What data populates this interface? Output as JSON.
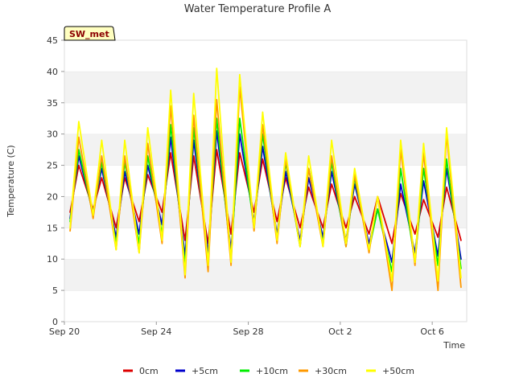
{
  "chart_data": {
    "type": "line",
    "title": "Water Temperature Profile A",
    "xlabel": "Time",
    "ylabel": "Temperature (C)",
    "ylim": [
      0,
      45
    ],
    "yticks": [
      0,
      5,
      10,
      15,
      20,
      25,
      30,
      35,
      40,
      45
    ],
    "xlim": [
      "2023-09-20",
      "2023-10-07T12:00"
    ],
    "xticks": [
      {
        "date": "2023-09-20",
        "label": "Sep 20"
      },
      {
        "date": "2023-09-24",
        "label": "Sep 24"
      },
      {
        "date": "2023-09-28",
        "label": "Sep 28"
      },
      {
        "date": "2023-10-02",
        "label": "Oct 2"
      },
      {
        "date": "2023-10-06",
        "label": "Oct 6"
      }
    ],
    "grid": "horizontal bands",
    "legend_position": "bottom",
    "badge": "SW_met",
    "series": [
      {
        "name": "0cm",
        "color": "#dd0000",
        "points": [
          [
            "2023-09-20T06:00",
            17.5
          ],
          [
            "2023-09-20T15:00",
            25.0
          ],
          [
            "2023-09-21T06:00",
            18.0
          ],
          [
            "2023-09-21T15:00",
            23.0
          ],
          [
            "2023-09-22T06:00",
            15.0
          ],
          [
            "2023-09-22T15:00",
            23.0
          ],
          [
            "2023-09-23T06:00",
            16.0
          ],
          [
            "2023-09-23T15:00",
            23.5
          ],
          [
            "2023-09-24T06:00",
            17.5
          ],
          [
            "2023-09-24T15:00",
            27.0
          ],
          [
            "2023-09-25T06:00",
            13.0
          ],
          [
            "2023-09-25T15:00",
            26.5
          ],
          [
            "2023-09-26T06:00",
            12.5
          ],
          [
            "2023-09-26T15:00",
            27.5
          ],
          [
            "2023-09-27T06:00",
            14.0
          ],
          [
            "2023-09-27T15:00",
            27.0
          ],
          [
            "2023-09-28T06:00",
            17.5
          ],
          [
            "2023-09-28T15:00",
            26.0
          ],
          [
            "2023-09-29T06:00",
            16.0
          ],
          [
            "2023-09-29T15:00",
            23.0
          ],
          [
            "2023-09-30T06:00",
            15.0
          ],
          [
            "2023-09-30T15:00",
            21.5
          ],
          [
            "2023-10-01T06:00",
            15.0
          ],
          [
            "2023-10-01T15:00",
            22.0
          ],
          [
            "2023-10-02T06:00",
            15.0
          ],
          [
            "2023-10-02T15:00",
            20.0
          ],
          [
            "2023-10-03T06:00",
            14.0
          ],
          [
            "2023-10-03T15:00",
            20.0
          ],
          [
            "2023-10-04T06:00",
            12.5
          ],
          [
            "2023-10-04T15:00",
            20.5
          ],
          [
            "2023-10-05T06:00",
            14.0
          ],
          [
            "2023-10-05T15:00",
            19.5
          ],
          [
            "2023-10-06T06:00",
            13.5
          ],
          [
            "2023-10-06T15:00",
            21.5
          ],
          [
            "2023-10-07T06:00",
            13.0
          ]
        ]
      },
      {
        "name": "+5cm",
        "color": "#0000cc",
        "points": [
          [
            "2023-09-20T06:00",
            16.5
          ],
          [
            "2023-09-20T15:00",
            26.5
          ],
          [
            "2023-09-21T06:00",
            17.5
          ],
          [
            "2023-09-21T15:00",
            24.5
          ],
          [
            "2023-09-22T06:00",
            13.5
          ],
          [
            "2023-09-22T15:00",
            24.0
          ],
          [
            "2023-09-23T06:00",
            14.0
          ],
          [
            "2023-09-23T15:00",
            25.0
          ],
          [
            "2023-09-24T06:00",
            15.5
          ],
          [
            "2023-09-24T15:00",
            29.5
          ],
          [
            "2023-09-25T06:00",
            10.5
          ],
          [
            "2023-09-25T15:00",
            29.0
          ],
          [
            "2023-09-26T06:00",
            11.0
          ],
          [
            "2023-09-26T15:00",
            30.5
          ],
          [
            "2023-09-27T06:00",
            11.5
          ],
          [
            "2023-09-27T15:00",
            30.0
          ],
          [
            "2023-09-28T06:00",
            16.0
          ],
          [
            "2023-09-28T15:00",
            28.0
          ],
          [
            "2023-09-29T06:00",
            14.0
          ],
          [
            "2023-09-29T15:00",
            24.0
          ],
          [
            "2023-09-30T06:00",
            13.0
          ],
          [
            "2023-09-30T15:00",
            23.0
          ],
          [
            "2023-10-01T06:00",
            13.5
          ],
          [
            "2023-10-01T15:00",
            24.0
          ],
          [
            "2023-10-02T06:00",
            13.0
          ],
          [
            "2023-10-02T15:00",
            22.0
          ],
          [
            "2023-10-03T06:00",
            12.5
          ],
          [
            "2023-10-03T15:00",
            18.0
          ],
          [
            "2023-10-04T06:00",
            9.5
          ],
          [
            "2023-10-04T15:00",
            22.0
          ],
          [
            "2023-10-05T06:00",
            11.0
          ],
          [
            "2023-10-05T15:00",
            22.5
          ],
          [
            "2023-10-06T06:00",
            10.5
          ],
          [
            "2023-10-06T15:00",
            24.5
          ],
          [
            "2023-10-07T06:00",
            10.0
          ]
        ]
      },
      {
        "name": "+10cm",
        "color": "#00ee00",
        "points": [
          [
            "2023-09-20T06:00",
            16.0
          ],
          [
            "2023-09-20T15:00",
            27.5
          ],
          [
            "2023-09-21T06:00",
            17.0
          ],
          [
            "2023-09-21T15:00",
            25.5
          ],
          [
            "2023-09-22T06:00",
            12.5
          ],
          [
            "2023-09-22T15:00",
            25.5
          ],
          [
            "2023-09-23T06:00",
            12.5
          ],
          [
            "2023-09-23T15:00",
            26.5
          ],
          [
            "2023-09-24T06:00",
            14.0
          ],
          [
            "2023-09-24T15:00",
            31.5
          ],
          [
            "2023-09-25T06:00",
            9.0
          ],
          [
            "2023-09-25T15:00",
            31.0
          ],
          [
            "2023-09-26T06:00",
            9.5
          ],
          [
            "2023-09-26T15:00",
            32.5
          ],
          [
            "2023-09-27T06:00",
            10.0
          ],
          [
            "2023-09-27T15:00",
            32.5
          ],
          [
            "2023-09-28T06:00",
            15.0
          ],
          [
            "2023-09-28T15:00",
            30.0
          ],
          [
            "2023-09-29T06:00",
            13.0
          ],
          [
            "2023-09-29T15:00",
            25.5
          ],
          [
            "2023-09-30T06:00",
            12.0
          ],
          [
            "2023-09-30T15:00",
            24.5
          ],
          [
            "2023-10-01T06:00",
            12.5
          ],
          [
            "2023-10-01T15:00",
            25.5
          ],
          [
            "2023-10-02T06:00",
            12.0
          ],
          [
            "2023-10-02T15:00",
            23.0
          ],
          [
            "2023-10-03T06:00",
            11.5
          ],
          [
            "2023-10-03T15:00",
            18.0
          ],
          [
            "2023-10-04T06:00",
            8.0
          ],
          [
            "2023-10-04T15:00",
            24.5
          ],
          [
            "2023-10-05T06:00",
            9.5
          ],
          [
            "2023-10-05T15:00",
            24.5
          ],
          [
            "2023-10-06T06:00",
            9.0
          ],
          [
            "2023-10-06T15:00",
            26.0
          ],
          [
            "2023-10-07T06:00",
            8.5
          ]
        ]
      },
      {
        "name": "+30cm",
        "color": "#ff9900",
        "points": [
          [
            "2023-09-20T06:00",
            14.5
          ],
          [
            "2023-09-20T15:00",
            29.5
          ],
          [
            "2023-09-21T06:00",
            16.5
          ],
          [
            "2023-09-21T15:00",
            26.5
          ],
          [
            "2023-09-22T06:00",
            11.5
          ],
          [
            "2023-09-22T15:00",
            26.5
          ],
          [
            "2023-09-23T06:00",
            11.0
          ],
          [
            "2023-09-23T15:00",
            28.5
          ],
          [
            "2023-09-24T06:00",
            12.5
          ],
          [
            "2023-09-24T15:00",
            34.5
          ],
          [
            "2023-09-25T06:00",
            7.0
          ],
          [
            "2023-09-25T15:00",
            33.0
          ],
          [
            "2023-09-26T06:00",
            8.0
          ],
          [
            "2023-09-26T15:00",
            35.5
          ],
          [
            "2023-09-27T06:00",
            9.0
          ],
          [
            "2023-09-27T15:00",
            37.5
          ],
          [
            "2023-09-28T06:00",
            14.5
          ],
          [
            "2023-09-28T15:00",
            31.5
          ],
          [
            "2023-09-29T06:00",
            12.5
          ],
          [
            "2023-09-29T15:00",
            26.0
          ],
          [
            "2023-09-30T06:00",
            12.0
          ],
          [
            "2023-09-30T15:00",
            24.5
          ],
          [
            "2023-10-01T06:00",
            12.0
          ],
          [
            "2023-10-01T15:00",
            26.5
          ],
          [
            "2023-10-02T06:00",
            12.0
          ],
          [
            "2023-10-02T15:00",
            23.5
          ],
          [
            "2023-10-03T06:00",
            11.0
          ],
          [
            "2023-10-03T15:00",
            20.0
          ],
          [
            "2023-10-04T06:00",
            5.0
          ],
          [
            "2023-10-04T15:00",
            27.5
          ],
          [
            "2023-10-05T06:00",
            9.0
          ],
          [
            "2023-10-05T15:00",
            27.0
          ],
          [
            "2023-10-06T06:00",
            5.0
          ],
          [
            "2023-10-06T15:00",
            30.0
          ],
          [
            "2023-10-07T06:00",
            5.5
          ]
        ]
      },
      {
        "name": "+50cm",
        "color": "#ffff00",
        "points": [
          [
            "2023-09-20T06:00",
            15.0
          ],
          [
            "2023-09-20T15:00",
            32.0
          ],
          [
            "2023-09-21T06:00",
            17.0
          ],
          [
            "2023-09-21T15:00",
            29.0
          ],
          [
            "2023-09-22T06:00",
            11.5
          ],
          [
            "2023-09-22T15:00",
            29.0
          ],
          [
            "2023-09-23T06:00",
            11.0
          ],
          [
            "2023-09-23T15:00",
            31.0
          ],
          [
            "2023-09-24T06:00",
            13.0
          ],
          [
            "2023-09-24T15:00",
            37.0
          ],
          [
            "2023-09-25T06:00",
            7.5
          ],
          [
            "2023-09-25T15:00",
            36.5
          ],
          [
            "2023-09-26T06:00",
            9.0
          ],
          [
            "2023-09-26T15:00",
            40.5
          ],
          [
            "2023-09-27T06:00",
            9.5
          ],
          [
            "2023-09-27T15:00",
            39.5
          ],
          [
            "2023-09-28T06:00",
            15.0
          ],
          [
            "2023-09-28T15:00",
            33.5
          ],
          [
            "2023-09-29T06:00",
            13.0
          ],
          [
            "2023-09-29T15:00",
            27.0
          ],
          [
            "2023-09-30T06:00",
            12.0
          ],
          [
            "2023-09-30T15:00",
            26.5
          ],
          [
            "2023-10-01T06:00",
            12.0
          ],
          [
            "2023-10-01T15:00",
            29.0
          ],
          [
            "2023-10-02T06:00",
            12.5
          ],
          [
            "2023-10-02T15:00",
            24.5
          ],
          [
            "2023-10-03T06:00",
            11.5
          ],
          [
            "2023-10-03T15:00",
            20.0
          ],
          [
            "2023-10-04T06:00",
            6.5
          ],
          [
            "2023-10-04T15:00",
            29.0
          ],
          [
            "2023-10-05T06:00",
            9.5
          ],
          [
            "2023-10-05T15:00",
            28.5
          ],
          [
            "2023-10-06T06:00",
            6.5
          ],
          [
            "2023-10-06T15:00",
            31.0
          ],
          [
            "2023-10-07T06:00",
            7.0
          ]
        ]
      }
    ]
  }
}
